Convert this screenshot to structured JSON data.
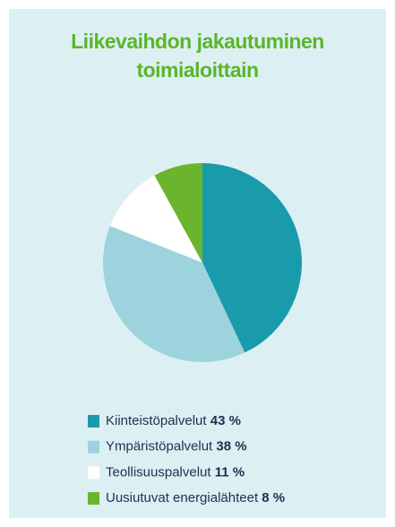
{
  "chart_data": {
    "type": "pie",
    "title": "Liikevaihdon jakautuminen toimialoittain",
    "categories": [
      "Kiinteistöpalvelut",
      "Ympäristöpalvelut",
      "Teollisuuspalvelut",
      "Uusiutuvat energialähteet"
    ],
    "values": [
      43,
      38,
      11,
      8
    ],
    "value_labels": [
      "43 %",
      "38 %",
      "11 %",
      "8 %"
    ],
    "colors": [
      "#1a9bab",
      "#9dd3dc",
      "#ffffff",
      "#6ab52c"
    ]
  }
}
